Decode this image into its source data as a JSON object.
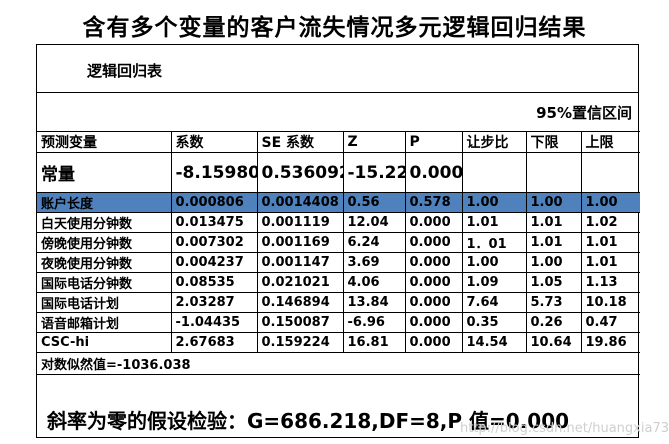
{
  "title": "含有多个变量的客户流失情况多元逻辑回归结果",
  "subtitle": "逻辑回归表",
  "ci_label": "95%置信区间",
  "headers": [
    "预测变量",
    "系数",
    "SE 系数",
    "Z",
    "P",
    "让步比",
    "下限",
    "上限"
  ],
  "constant_row": [
    "常量",
    "-8.15980",
    "0.536092",
    "-15.22",
    "0.000",
    "",
    "",
    ""
  ],
  "rows": [
    [
      "账户长度",
      "0.000806",
      "0.0014408",
      "0.56",
      "0.578",
      "1.00",
      "1.00",
      "1.00"
    ],
    [
      "白天使用分钟数",
      "0.013475",
      "0.001119",
      "12.04",
      "0.000",
      "1.01",
      "1.01",
      "1.02"
    ],
    [
      "傍晚使用分钟数",
      "0.007302",
      "0.001169",
      "6.24",
      "0.000",
      "1．01",
      "1.01",
      "1.01"
    ],
    [
      "夜晚使用分钟数",
      "0.004237",
      "0.001147",
      "3.69",
      "0.000",
      "1.00",
      "1.00",
      "1.01"
    ],
    [
      "国际电话分钟数",
      "0.08535",
      "0.021021",
      "4.06",
      "0.000",
      "1.09",
      "1.05",
      "1.13"
    ],
    [
      "国际电话计划",
      "2.03287",
      "0.146894",
      "13.84",
      "0.000",
      "7.64",
      "5.73",
      "10.18"
    ],
    [
      "语音邮箱计划",
      "-1.04435",
      "0.150087",
      "-6.96",
      "0.000",
      "0.35",
      "0.26",
      "0.47"
    ],
    [
      "CSC-hi",
      "2.67683",
      "0.159224",
      "16.81",
      "0.000",
      "14.54",
      "10.64",
      "19.86"
    ]
  ],
  "selected_row": 0,
  "loglik": "对数似然值=-1036.038",
  "test_text": "斜率为零的假设检验：G=686.218,DF=8,P 值=0.000",
  "watermark": "http://blog.csdn.net/huangxia73",
  "colors": {
    "selected_row_bg": "#4f81bd"
  }
}
